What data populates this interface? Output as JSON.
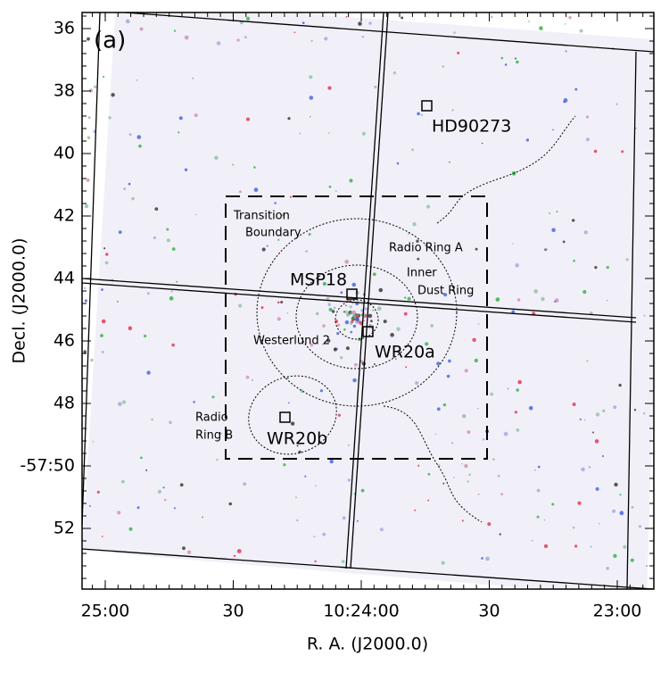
{
  "panel_label": "(a)",
  "x_axis": {
    "label": "R. A. (J2000.0)",
    "ticks": [
      "25:00",
      "30",
      "10:24:00",
      "30",
      "23:00"
    ]
  },
  "y_axis": {
    "label": "Decl. (J2000.0)",
    "ticks": [
      "36",
      "38",
      "40",
      "42",
      "44",
      "46",
      "48",
      "-57:50",
      "52"
    ]
  },
  "annotations": [
    "HD90273",
    "Transition",
    "Boundary",
    "Radio Ring A",
    "Inner",
    "Dust Ring",
    "MSP18",
    "Westerlund 2",
    "WR20a",
    "Radio",
    "Ring B",
    "WR20b"
  ]
}
